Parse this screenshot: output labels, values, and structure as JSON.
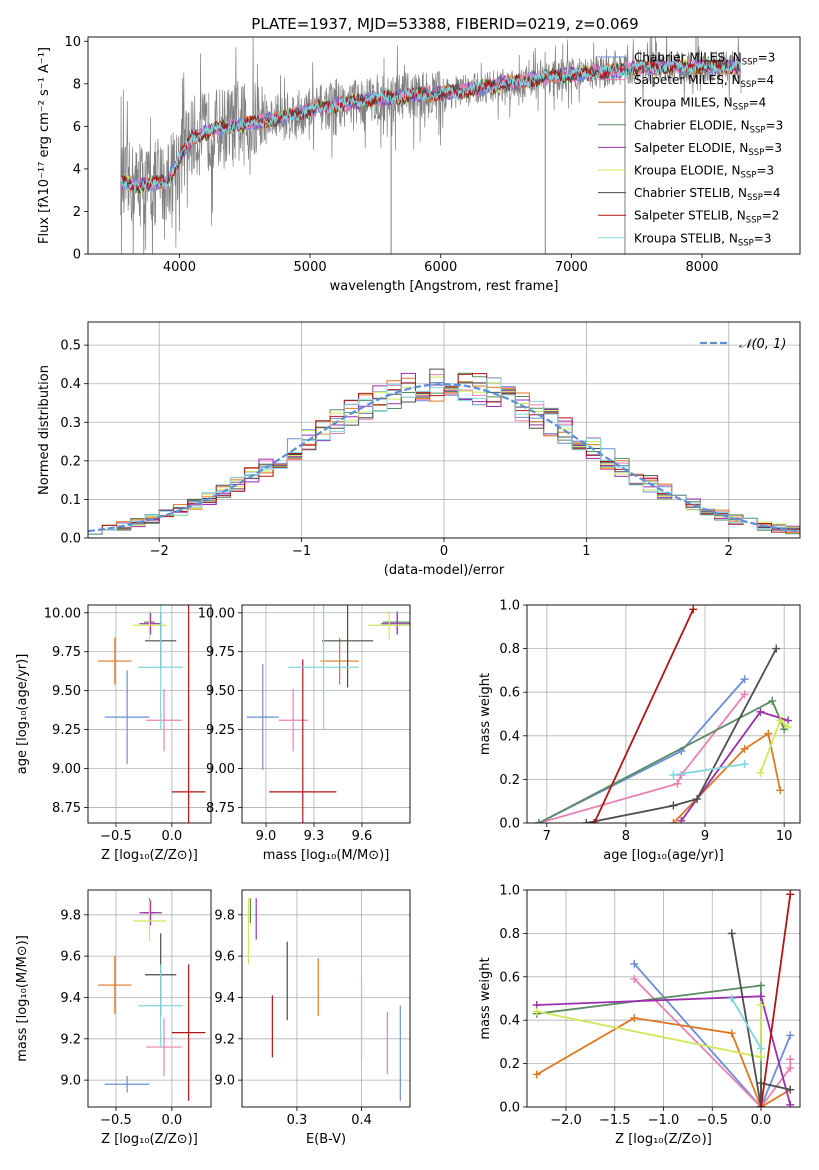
{
  "figure": {
    "title": "PLATE=1937, MJD=53388, FIBERID=0219, z=0.069"
  },
  "colors": {
    "Chabrier MILES": "#6a8fd6",
    "Salpeter MILES": "#e882b4",
    "Kroupa MILES": "#dd7722",
    "Chabrier ELODIE": "#5a8a62",
    "Salpeter ELODIE": "#9b2fae",
    "Kroupa ELODIE": "#cfe85a",
    "Chabrier STELIB": "#4d4d4d",
    "Salpeter STELIB": "#b01515",
    "Kroupa STELIB": "#7fd6dc",
    "data": "#808080",
    "normal": "#5b8fd6"
  },
  "chart_data": [
    {
      "id": "spectrum",
      "type": "line",
      "title": "PLATE=1937, MJD=53388, FIBERID=0219, z=0.069",
      "xlabel": "wavelength [Angstrom, rest frame]",
      "ylabel": "Flux [fλ10⁻¹⁷ erg cm⁻² s⁻¹ A⁻¹]",
      "xlim": [
        3300,
        8750
      ],
      "ylim": [
        0,
        10.2
      ],
      "xticks": [
        4000,
        5000,
        6000,
        7000,
        8000
      ],
      "yticks": [
        0,
        2,
        4,
        6,
        8,
        10
      ],
      "legend_position": "top-right",
      "grid": false,
      "legend": [
        {
          "label": "Chabrier MILES, N",
          "sub": "SSP",
          "val": "=3"
        },
        {
          "label": "Salpeter MILES, N",
          "sub": "SSP",
          "val": "=4"
        },
        {
          "label": "Kroupa MILES, N",
          "sub": "SSP",
          "val": "=4"
        },
        {
          "label": "Chabrier ELODIE, N",
          "sub": "SSP",
          "val": "=3"
        },
        {
          "label": "Salpeter ELODIE, N",
          "sub": "SSP",
          "val": "=3"
        },
        {
          "label": "Kroupa ELODIE, N",
          "sub": "SSP",
          "val": "=3"
        },
        {
          "label": "Chabrier STELIB, N",
          "sub": "SSP",
          "val": "=4"
        },
        {
          "label": "Salpeter STELIB, N",
          "sub": "SSP",
          "val": "=2"
        },
        {
          "label": "Kroupa STELIB, N",
          "sub": "SSP",
          "val": "=3"
        }
      ],
      "continuum": {
        "x": [
          3550,
          3700,
          3800,
          3900,
          4000,
          4100,
          4300,
          4500,
          4700,
          4900,
          5100,
          5300,
          5500,
          5700,
          5900,
          6100,
          6300,
          6500,
          6700,
          6900,
          7100,
          7300,
          7500,
          7700,
          7900,
          8100,
          8300
        ],
        "y": [
          3.4,
          3.2,
          3.3,
          3.4,
          4.5,
          5.5,
          5.9,
          6.1,
          6.3,
          6.6,
          6.9,
          7.1,
          7.3,
          7.4,
          7.5,
          7.6,
          7.8,
          8.0,
          8.2,
          8.4,
          8.5,
          8.6,
          8.7,
          8.8,
          8.8,
          8.8,
          8.8
        ]
      },
      "model_x_range": [
        3550,
        8300
      ],
      "data_x_range": [
        3550,
        8300
      ]
    },
    {
      "id": "residuals",
      "type": "step",
      "xlabel": "(data-model)/error",
      "ylabel": "Normed distribution",
      "xlim": [
        -2.5,
        2.5
      ],
      "ylim": [
        0,
        0.56
      ],
      "xticks": [
        -2,
        -1,
        0,
        1,
        2
      ],
      "yticks": [
        0.0,
        0.1,
        0.2,
        0.3,
        0.4,
        0.5
      ],
      "grid": true,
      "legend_position": "top-right",
      "legend": [
        "𝒩(0, 1)"
      ],
      "bin_width": 0.1
    },
    {
      "id": "age_vs_Z",
      "type": "errorbar",
      "xlabel": "Z [log₁₀(Z/Z⊙)]",
      "ylabel": "age  [log₁₀(age/yr)]",
      "xlim": [
        -0.75,
        0.35
      ],
      "ylim": [
        8.65,
        10.05
      ],
      "xticks": [
        -0.5,
        0.0
      ],
      "yticks": [
        8.75,
        9.0,
        9.25,
        9.5,
        9.75,
        10.0
      ],
      "grid": true,
      "points": [
        {
          "model": "Chabrier MILES",
          "x": -0.4,
          "y": 9.33,
          "xerr": 0.2,
          "yerr": 0.3
        },
        {
          "model": "Salpeter MILES",
          "x": -0.07,
          "y": 9.31,
          "xerr": 0.16,
          "yerr": 0.2
        },
        {
          "model": "Kroupa MILES",
          "x": -0.51,
          "y": 9.69,
          "xerr": 0.15,
          "yerr": 0.15
        },
        {
          "model": "Chabrier ELODIE",
          "x": -0.2,
          "y": 9.94,
          "xerr": 0.05,
          "yerr": 0.07
        },
        {
          "model": "Salpeter ELODIE",
          "x": -0.19,
          "y": 9.93,
          "xerr": 0.1,
          "yerr": 0.07
        },
        {
          "model": "Kroupa ELODIE",
          "x": -0.2,
          "y": 9.92,
          "xerr": 0.15,
          "yerr": 0.09
        },
        {
          "model": "Chabrier STELIB",
          "x": -0.1,
          "y": 9.82,
          "xerr": 0.14,
          "yerr": 0.18
        },
        {
          "model": "Salpeter STELIB",
          "x": 0.15,
          "y": 8.85,
          "xerr": 0.15,
          "yerr": 1.2
        },
        {
          "model": "Kroupa STELIB",
          "x": -0.1,
          "y": 9.65,
          "xerr": 0.2,
          "yerr": 0.4
        }
      ]
    },
    {
      "id": "age_vs_mass",
      "type": "errorbar",
      "xlabel": "mass [log₁₀(M/M⊙)]",
      "ylabel": "",
      "xlim": [
        8.85,
        9.9
      ],
      "ylim": [
        8.65,
        10.05
      ],
      "xticks": [
        9.0,
        9.3,
        9.6
      ],
      "yticks": [
        8.75,
        9.0,
        9.25,
        9.5,
        9.75,
        10.0
      ],
      "grid": true,
      "points": [
        {
          "model": "Chabrier MILES",
          "x": 8.98,
          "y": 9.33,
          "xerr": 0.1,
          "yerr": 0.34
        },
        {
          "model": "Salpeter MILES",
          "x": 9.17,
          "y": 9.31,
          "xerr": 0.09,
          "yerr": 0.2
        },
        {
          "model": "Kroupa MILES",
          "x": 9.46,
          "y": 9.69,
          "xerr": 0.12,
          "yerr": 0.15
        },
        {
          "model": "Chabrier ELODIE",
          "x": 9.82,
          "y": 9.94,
          "xerr": 0.09,
          "yerr": 0.07
        },
        {
          "model": "Salpeter ELODIE",
          "x": 9.82,
          "y": 9.93,
          "xerr": 0.1,
          "yerr": 0.07
        },
        {
          "model": "Kroupa ELODIE",
          "x": 9.77,
          "y": 9.92,
          "xerr": 0.13,
          "yerr": 0.09
        },
        {
          "model": "Chabrier STELIB",
          "x": 9.51,
          "y": 9.82,
          "xerr": 0.16,
          "yerr": 0.3
        },
        {
          "model": "Salpeter STELIB",
          "x": 9.23,
          "y": 8.85,
          "xerr": 0.21,
          "yerr": 0.85
        },
        {
          "model": "Kroupa STELIB",
          "x": 9.36,
          "y": 9.65,
          "xerr": 0.22,
          "yerr": 0.4
        }
      ]
    },
    {
      "id": "weight_vs_age",
      "type": "line",
      "xlabel": "age  [log₁₀(age/yr)]",
      "ylabel": "mass weight",
      "xlim": [
        6.75,
        10.2
      ],
      "ylim": [
        0,
        1.0
      ],
      "xticks": [
        7,
        8,
        9,
        10
      ],
      "yticks": [
        0.0,
        0.2,
        0.4,
        0.6,
        0.8,
        1.0
      ],
      "grid": true,
      "series": [
        {
          "model": "Chabrier MILES",
          "x": [
            6.9,
            8.7,
            9.5
          ],
          "y": [
            0.0,
            0.33,
            0.66
          ]
        },
        {
          "model": "Salpeter MILES",
          "x": [
            6.9,
            8.65,
            8.7,
            9.5
          ],
          "y": [
            0.0,
            0.18,
            0.22,
            0.59
          ]
        },
        {
          "model": "Kroupa MILES",
          "x": [
            8.6,
            9.5,
            9.8,
            9.95
          ],
          "y": [
            0.0,
            0.34,
            0.41,
            0.15
          ]
        },
        {
          "model": "Chabrier ELODIE",
          "x": [
            6.9,
            9.85,
            10.0
          ],
          "y": [
            0.0,
            0.56,
            0.43
          ]
        },
        {
          "model": "Salpeter ELODIE",
          "x": [
            8.7,
            9.7,
            10.05
          ],
          "y": [
            0.01,
            0.51,
            0.47
          ]
        },
        {
          "model": "Kroupa ELODIE",
          "x": [
            9.7,
            9.95,
            10.05
          ],
          "y": [
            0.23,
            0.47,
            0.44
          ]
        },
        {
          "model": "Chabrier STELIB",
          "x": [
            7.5,
            8.6,
            8.9,
            9.9
          ],
          "y": [
            0.0,
            0.08,
            0.11,
            0.8
          ]
        },
        {
          "model": "Salpeter STELIB",
          "x": [
            7.6,
            8.85
          ],
          "y": [
            0.0,
            0.98
          ]
        },
        {
          "model": "Kroupa STELIB",
          "x": [
            8.6,
            9.5
          ],
          "y": [
            0.22,
            0.27
          ]
        }
      ]
    },
    {
      "id": "mass_vs_Z",
      "type": "errorbar",
      "xlabel": "Z [log₁₀(Z/Z⊙)]",
      "ylabel": "mass [log₁₀(M/M⊙)]",
      "xlim": [
        -0.75,
        0.35
      ],
      "ylim": [
        8.87,
        9.92
      ],
      "xticks": [
        -0.5,
        0.0
      ],
      "yticks": [
        9.0,
        9.2,
        9.4,
        9.6,
        9.8
      ],
      "grid": true,
      "points": [
        {
          "model": "Chabrier MILES",
          "x": -0.4,
          "y": 8.98,
          "xerr": 0.2,
          "yerr": 0.04
        },
        {
          "model": "Salpeter MILES",
          "x": -0.07,
          "y": 9.16,
          "xerr": 0.16,
          "yerr": 0.14
        },
        {
          "model": "Kroupa MILES",
          "x": -0.51,
          "y": 9.46,
          "xerr": 0.15,
          "yerr": 0.14
        },
        {
          "model": "Chabrier ELODIE",
          "x": -0.2,
          "y": 9.81,
          "xerr": 0.05,
          "yerr": 0.07
        },
        {
          "model": "Salpeter ELODIE",
          "x": -0.19,
          "y": 9.81,
          "xerr": 0.1,
          "yerr": 0.06
        },
        {
          "model": "Kroupa ELODIE",
          "x": -0.2,
          "y": 9.77,
          "xerr": 0.15,
          "yerr": 0.1
        },
        {
          "model": "Chabrier STELIB",
          "x": -0.1,
          "y": 9.51,
          "xerr": 0.14,
          "yerr": 0.2
        },
        {
          "model": "Salpeter STELIB",
          "x": 0.15,
          "y": 9.23,
          "xerr": 0.15,
          "yerr": 0.33
        },
        {
          "model": "Kroupa STELIB",
          "x": -0.1,
          "y": 9.36,
          "xerr": 0.2,
          "yerr": 0.2
        }
      ]
    },
    {
      "id": "mass_vs_ebv",
      "type": "errorbar",
      "xlabel": "E(B-V)",
      "ylabel": "",
      "xlim": [
        0.215,
        0.475
      ],
      "ylim": [
        8.87,
        9.92
      ],
      "xticks": [
        0.3,
        0.4
      ],
      "yticks": [
        9.0,
        9.2,
        9.4,
        9.6,
        9.8
      ],
      "grid": true,
      "points": [
        {
          "model": "Chabrier MILES",
          "x": 0.46,
          "y": 9.13,
          "xerr": 0.0,
          "yerr": 0.23
        },
        {
          "model": "Salpeter MILES",
          "x": 0.44,
          "y": 9.18,
          "xerr": 0.0,
          "yerr": 0.15
        },
        {
          "model": "Kroupa MILES",
          "x": 0.333,
          "y": 9.45,
          "xerr": 0.0,
          "yerr": 0.14
        },
        {
          "model": "Chabrier ELODIE",
          "x": 0.228,
          "y": 9.82,
          "xerr": 0.0,
          "yerr": 0.06
        },
        {
          "model": "Salpeter ELODIE",
          "x": 0.237,
          "y": 9.78,
          "xerr": 0.0,
          "yerr": 0.1
        },
        {
          "model": "Kroupa ELODIE",
          "x": 0.225,
          "y": 9.72,
          "xerr": 0.0,
          "yerr": 0.16
        },
        {
          "model": "Chabrier STELIB",
          "x": 0.285,
          "y": 9.48,
          "xerr": 0.0,
          "yerr": 0.19
        },
        {
          "model": "Salpeter STELIB",
          "x": 0.262,
          "y": 9.26,
          "xerr": 0.0,
          "yerr": 0.15
        },
        {
          "model": "Kroupa STELIB",
          "x": 0.4,
          "y": 9.3,
          "xerr": 0.0,
          "yerr": 0.2
        }
      ]
    },
    {
      "id": "weight_vs_Z",
      "type": "line",
      "xlabel": "Z [log₁₀(Z/Z⊙)]",
      "ylabel": "mass weight",
      "xlim": [
        -2.4,
        0.4
      ],
      "ylim": [
        0,
        1.0
      ],
      "xticks": [
        -2.0,
        -1.5,
        -1.0,
        -0.5,
        0.0
      ],
      "yticks": [
        0.0,
        0.2,
        0.4,
        0.6,
        0.8,
        1.0
      ],
      "grid": true,
      "series": [
        {
          "model": "Chabrier MILES",
          "x": [
            -1.3,
            0.0,
            0.3
          ],
          "y": [
            0.66,
            0.0,
            0.33
          ]
        },
        {
          "model": "Salpeter MILES",
          "x": [
            -1.3,
            0.0,
            0.3,
            0.3
          ],
          "y": [
            0.59,
            0.0,
            0.18,
            0.22
          ]
        },
        {
          "model": "Kroupa MILES",
          "x": [
            -2.3,
            -1.3,
            -0.3,
            0.0,
            0.3
          ],
          "y": [
            0.15,
            0.41,
            0.34,
            0.0,
            0.08
          ]
        },
        {
          "model": "Chabrier ELODIE",
          "x": [
            -2.3,
            0.0,
            0.0
          ],
          "y": [
            0.43,
            0.56,
            0.0
          ]
        },
        {
          "model": "Salpeter ELODIE",
          "x": [
            -2.3,
            0.0,
            0.3
          ],
          "y": [
            0.47,
            0.51,
            0.01
          ]
        },
        {
          "model": "Kroupa ELODIE",
          "x": [
            -2.3,
            0.0,
            0.0
          ],
          "y": [
            0.44,
            0.23,
            0.47
          ]
        },
        {
          "model": "Chabrier STELIB",
          "x": [
            -0.3,
            0.0,
            0.0,
            0.3
          ],
          "y": [
            0.8,
            0.0,
            0.11,
            0.08
          ]
        },
        {
          "model": "Salpeter STELIB",
          "x": [
            0.0,
            0.3
          ],
          "y": [
            0.0,
            0.98
          ]
        },
        {
          "model": "Kroupa STELIB",
          "x": [
            -0.3,
            0.0
          ],
          "y": [
            0.5,
            0.27
          ]
        }
      ]
    }
  ]
}
